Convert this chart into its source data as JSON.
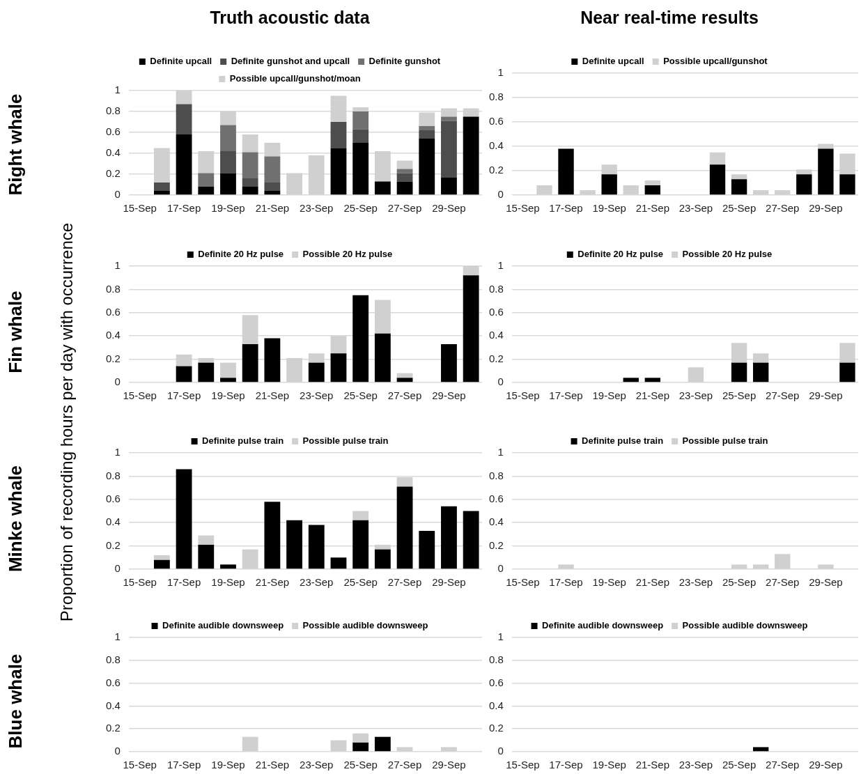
{
  "chart_data": [
    {
      "type": "bar",
      "title": "Truth acoustic data",
      "ylabel": "Right whale",
      "annotations": [
        "Proportion of recording hours per day with occurrence"
      ],
      "categories": [
        "15-Sep",
        null,
        "17-Sep",
        null,
        "19-Sep",
        null,
        "21-Sep",
        null,
        "23-Sep",
        null,
        "25-Sep",
        null,
        "27-Sep",
        null,
        "29-Sep",
        null
      ],
      "stacked": true,
      "ylim": [
        0,
        1
      ],
      "yticks": [
        0,
        0.2,
        0.4,
        0.6,
        0.8,
        1
      ],
      "grid": "y",
      "legend": "top",
      "series": [
        {
          "name": "Definite upcall",
          "color": "#000000",
          "values": [
            0,
            0.04,
            0.58,
            0.08,
            0.21,
            0.08,
            0.04,
            0,
            0,
            0.45,
            0.5,
            0.13,
            0.13,
            0.54,
            0.17,
            0.75
          ]
        },
        {
          "name": "Definite gunshot and upcall",
          "color": "#4d4d4d",
          "values": [
            0,
            0.08,
            0.29,
            0,
            0.21,
            0.08,
            0.08,
            0,
            0,
            0.25,
            0.13,
            0,
            0.08,
            0.08,
            0.54,
            0
          ]
        },
        {
          "name": "Definite gunshot",
          "color": "#707070",
          "values": [
            0,
            0,
            0,
            0.13,
            0.25,
            0.25,
            0.25,
            0,
            0,
            0,
            0.17,
            0,
            0.04,
            0.04,
            0.04,
            0
          ]
        },
        {
          "name": "Possible upcall/gunshot/moan",
          "color": "#d0d0d0",
          "values": [
            0,
            0.33,
            0.13,
            0.21,
            0.13,
            0.17,
            0.13,
            0.21,
            0.38,
            0.25,
            0.04,
            0.29,
            0.08,
            0.13,
            0.08,
            0.08
          ]
        }
      ]
    },
    {
      "type": "bar",
      "title": "Near real-time results",
      "categories": [
        "15-Sep",
        null,
        "17-Sep",
        null,
        "19-Sep",
        null,
        "21-Sep",
        null,
        "23-Sep",
        null,
        "25-Sep",
        null,
        "27-Sep",
        null,
        "29-Sep",
        null
      ],
      "stacked": true,
      "ylim": [
        0,
        1
      ],
      "yticks": [
        0,
        0.2,
        0.4,
        0.6,
        0.8,
        1
      ],
      "grid": "y",
      "legend": "top",
      "series": [
        {
          "name": "Definite upcall",
          "color": "#000000",
          "values": [
            0,
            0,
            0.38,
            0,
            0.17,
            0,
            0.08,
            0,
            0,
            0.25,
            0.13,
            0,
            0,
            0.17,
            0.38,
            0.17
          ]
        },
        {
          "name": "Possible upcall/gunshot",
          "color": "#d0d0d0",
          "values": [
            0,
            0.08,
            0,
            0.04,
            0.08,
            0.08,
            0.04,
            0,
            0,
            0.1,
            0.04,
            0.04,
            0.04,
            0.04,
            0.04,
            0.17
          ]
        }
      ]
    },
    {
      "type": "bar",
      "ylabel": "Fin whale",
      "categories": [
        "15-Sep",
        null,
        "17-Sep",
        null,
        "19-Sep",
        null,
        "21-Sep",
        null,
        "23-Sep",
        null,
        "25-Sep",
        null,
        "27-Sep",
        null,
        "29-Sep",
        null
      ],
      "stacked": true,
      "ylim": [
        0,
        1
      ],
      "yticks": [
        0,
        0.2,
        0.4,
        0.6,
        0.8,
        1
      ],
      "grid": "y",
      "legend": "top",
      "series": [
        {
          "name": "Definite 20 Hz pulse",
          "color": "#000000",
          "values": [
            0,
            0,
            0.14,
            0.17,
            0.04,
            0.33,
            0.38,
            0,
            0.17,
            0.25,
            0.75,
            0.42,
            0.04,
            0,
            0.33,
            0.92
          ]
        },
        {
          "name": "Possible 20 Hz pulse",
          "color": "#d0d0d0",
          "values": [
            0,
            0,
            0.1,
            0.04,
            0.13,
            0.25,
            0,
            0.21,
            0.08,
            0.15,
            0,
            0.29,
            0.04,
            0,
            0,
            0.08
          ]
        }
      ]
    },
    {
      "type": "bar",
      "categories": [
        "15-Sep",
        null,
        "17-Sep",
        null,
        "19-Sep",
        null,
        "21-Sep",
        null,
        "23-Sep",
        null,
        "25-Sep",
        null,
        "27-Sep",
        null,
        "29-Sep",
        null
      ],
      "stacked": true,
      "ylim": [
        0,
        1
      ],
      "yticks": [
        0,
        0.2,
        0.4,
        0.6,
        0.8,
        1
      ],
      "grid": "y",
      "legend": "top",
      "series": [
        {
          "name": "Definite 20 Hz pulse",
          "color": "#000000",
          "values": [
            0,
            0,
            0,
            0,
            0,
            0.04,
            0.04,
            0,
            0,
            0,
            0.17,
            0.17,
            0,
            0,
            0,
            0.17
          ]
        },
        {
          "name": "Possible 20 Hz pulse",
          "color": "#d0d0d0",
          "values": [
            0,
            0,
            0,
            0,
            0,
            0,
            0,
            0,
            0.13,
            0,
            0.17,
            0.08,
            0,
            0,
            0,
            0.17
          ]
        }
      ]
    },
    {
      "type": "bar",
      "ylabel": "Minke whale",
      "categories": [
        "15-Sep",
        null,
        "17-Sep",
        null,
        "19-Sep",
        null,
        "21-Sep",
        null,
        "23-Sep",
        null,
        "25-Sep",
        null,
        "27-Sep",
        null,
        "29-Sep",
        null
      ],
      "stacked": true,
      "ylim": [
        0,
        1
      ],
      "yticks": [
        0,
        0.2,
        0.4,
        0.6,
        0.8,
        1
      ],
      "grid": "y",
      "legend": "top",
      "series": [
        {
          "name": "Definite pulse train",
          "color": "#000000",
          "values": [
            0,
            0.08,
            0.86,
            0.21,
            0.04,
            0,
            0.58,
            0.42,
            0.38,
            0.1,
            0.42,
            0.17,
            0.71,
            0.33,
            0.54,
            0.5
          ]
        },
        {
          "name": "Possible pulse train",
          "color": "#d0d0d0",
          "values": [
            0,
            0.04,
            0,
            0.08,
            0,
            0.17,
            0,
            0,
            0,
            0,
            0.08,
            0.04,
            0.08,
            0,
            0,
            0
          ]
        }
      ]
    },
    {
      "type": "bar",
      "categories": [
        "15-Sep",
        null,
        "17-Sep",
        null,
        "19-Sep",
        null,
        "21-Sep",
        null,
        "23-Sep",
        null,
        "25-Sep",
        null,
        "27-Sep",
        null,
        "29-Sep",
        null
      ],
      "stacked": true,
      "ylim": [
        0,
        1
      ],
      "yticks": [
        0,
        0.2,
        0.4,
        0.6,
        0.8,
        1
      ],
      "grid": "y",
      "legend": "top",
      "series": [
        {
          "name": "Definite pulse train",
          "color": "#000000",
          "values": [
            0,
            0,
            0,
            0,
            0,
            0,
            0,
            0,
            0,
            0,
            0,
            0,
            0,
            0,
            0,
            0
          ]
        },
        {
          "name": "Possible pulse train",
          "color": "#d0d0d0",
          "values": [
            0,
            0,
            0.04,
            0,
            0,
            0,
            0,
            0,
            0,
            0,
            0.04,
            0.04,
            0.13,
            0,
            0.04,
            0
          ]
        }
      ]
    },
    {
      "type": "bar",
      "ylabel": "Blue whale",
      "categories": [
        "15-Sep",
        null,
        "17-Sep",
        null,
        "19-Sep",
        null,
        "21-Sep",
        null,
        "23-Sep",
        null,
        "25-Sep",
        null,
        "27-Sep",
        null,
        "29-Sep",
        null
      ],
      "stacked": true,
      "ylim": [
        0,
        1
      ],
      "yticks": [
        0,
        0.2,
        0.4,
        0.6,
        0.8,
        1
      ],
      "grid": "y",
      "legend": "top",
      "series": [
        {
          "name": "Definite audible downsweep",
          "color": "#000000",
          "values": [
            0,
            0,
            0,
            0,
            0,
            0,
            0,
            0,
            0,
            0,
            0.08,
            0.13,
            0,
            0,
            0,
            0
          ]
        },
        {
          "name": "Possible audible downsweep",
          "color": "#d0d0d0",
          "values": [
            0,
            0,
            0,
            0,
            0,
            0.13,
            0,
            0,
            0,
            0.1,
            0.08,
            0,
            0.04,
            0,
            0.04,
            0
          ]
        }
      ]
    },
    {
      "type": "bar",
      "categories": [
        "15-Sep",
        null,
        "17-Sep",
        null,
        "19-Sep",
        null,
        "21-Sep",
        null,
        "23-Sep",
        null,
        "25-Sep",
        null,
        "27-Sep",
        null,
        "29-Sep",
        null
      ],
      "stacked": true,
      "ylim": [
        0,
        1
      ],
      "yticks": [
        0,
        0.2,
        0.4,
        0.6,
        0.8,
        1
      ],
      "grid": "y",
      "legend": "top",
      "series": [
        {
          "name": "Definite audible downsweep",
          "color": "#000000",
          "values": [
            0,
            0,
            0,
            0,
            0,
            0,
            0,
            0,
            0,
            0,
            0,
            0.04,
            0,
            0,
            0,
            0
          ]
        },
        {
          "name": "Possible audible downsweep",
          "color": "#d0d0d0",
          "values": [
            0,
            0,
            0,
            0,
            0,
            0,
            0,
            0,
            0,
            0,
            0,
            0,
            0,
            0,
            0,
            0
          ]
        }
      ]
    }
  ]
}
